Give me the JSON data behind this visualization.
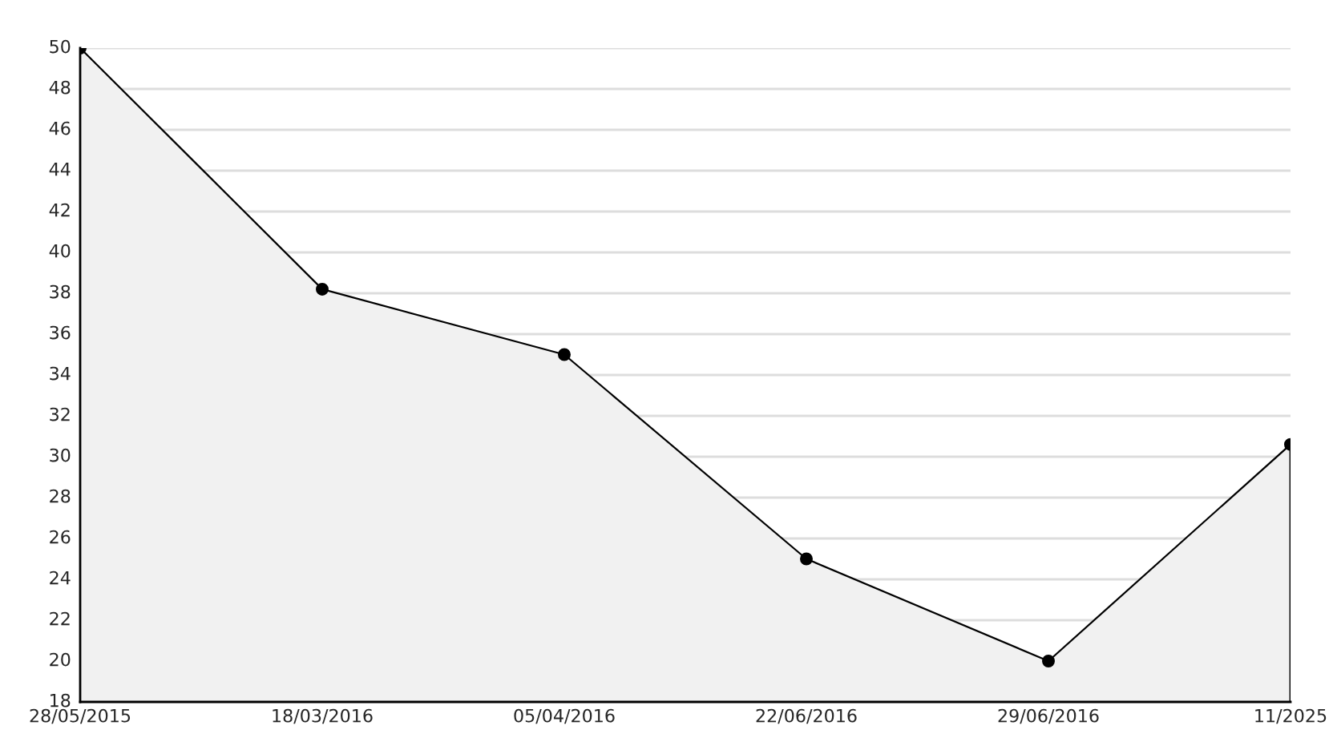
{
  "chart_data": {
    "type": "area",
    "categories": [
      "28/05/2015",
      "18/03/2016",
      "05/04/2016",
      "22/06/2016",
      "29/06/2016",
      "11/2025"
    ],
    "series": [
      {
        "color": "#000000",
        "values": [
          50,
          38.2,
          35.0,
          25,
          20,
          30.6
        ]
      }
    ],
    "ylim": [
      18,
      50
    ],
    "yticks": [
      18,
      20,
      22,
      24,
      26,
      28,
      30,
      32,
      34,
      36,
      38,
      40,
      42,
      44,
      46,
      48,
      50
    ],
    "grid": "y",
    "marker": "circle",
    "line_style": "solid",
    "legend": false
  }
}
